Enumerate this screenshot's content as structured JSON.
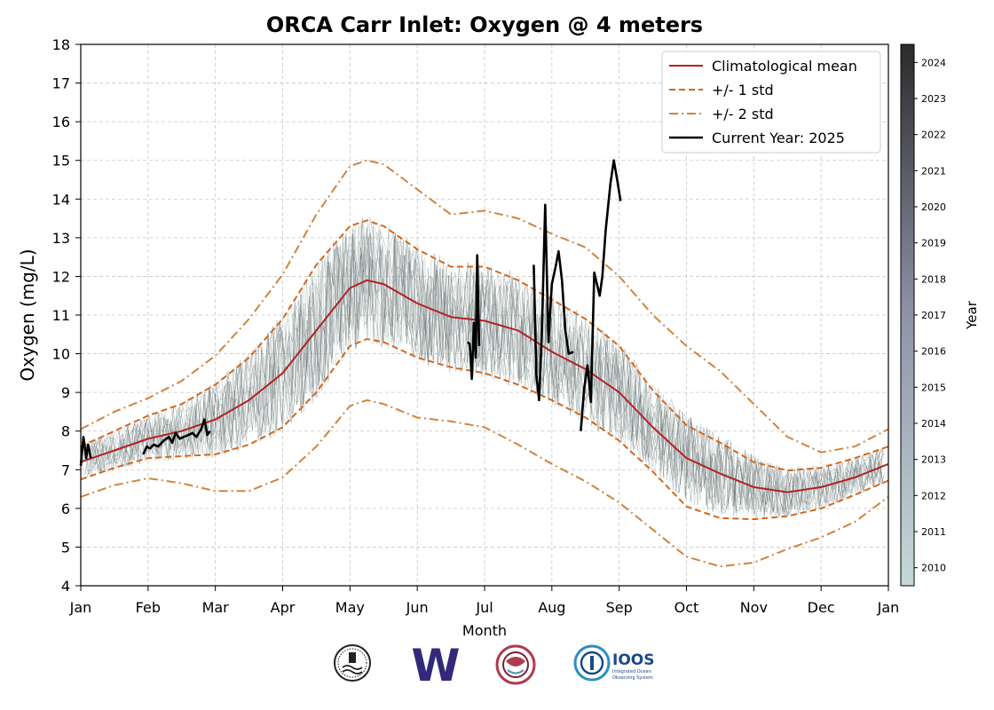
{
  "chart_data": {
    "type": "line",
    "title": "ORCA Carr Inlet: Oxygen @ 4 meters",
    "xlabel": "Month",
    "ylabel": "Oxygen (mg/L)",
    "xlim": [
      0,
      12
    ],
    "ylim": [
      4,
      18
    ],
    "x_ticks": [
      "Jan",
      "Feb",
      "Mar",
      "Apr",
      "May",
      "Jun",
      "Jul",
      "Aug",
      "Sep",
      "Oct",
      "Nov",
      "Dec",
      "Jan"
    ],
    "y_ticks": [
      4,
      5,
      6,
      7,
      8,
      9,
      10,
      11,
      12,
      13,
      14,
      15,
      16,
      17,
      18
    ],
    "grid": true,
    "legend_position": "upper right",
    "colorbar": {
      "label": "Year",
      "min": 2009.5,
      "max": 2024.5,
      "ticks": [
        2010,
        2011,
        2012,
        2013,
        2014,
        2015,
        2016,
        2017,
        2018,
        2019,
        2020,
        2021,
        2022,
        2023,
        2024
      ],
      "color_low": "#c5d9d8",
      "color_high": "#2b2b2b"
    },
    "series": [
      {
        "name": "Climatological mean",
        "color": "#b22222",
        "style": "solid",
        "x": [
          0,
          0.5,
          1,
          1.5,
          2,
          2.5,
          3,
          3.5,
          4,
          4.25,
          4.5,
          5,
          5.5,
          6,
          6.5,
          7,
          7.5,
          8,
          8.5,
          9,
          9.5,
          10,
          10.5,
          11,
          11.5,
          12
        ],
        "y": [
          7.2,
          7.5,
          7.8,
          8.0,
          8.3,
          8.8,
          9.5,
          10.6,
          11.7,
          11.9,
          11.8,
          11.3,
          10.95,
          10.85,
          10.6,
          10.05,
          9.6,
          9.0,
          8.1,
          7.3,
          6.9,
          6.55,
          6.42,
          6.55,
          6.8,
          7.15
        ]
      },
      {
        "name": "+/- 1 std",
        "color": "#d2691e",
        "style": "dashed",
        "x": [
          0,
          0.5,
          1,
          1.5,
          2,
          2.5,
          3,
          3.5,
          4,
          4.25,
          4.5,
          5,
          5.5,
          6,
          6.5,
          7,
          7.5,
          8,
          8.5,
          9,
          9.5,
          10,
          10.5,
          11,
          11.5,
          12
        ],
        "y": [
          7.6,
          8.0,
          8.4,
          8.7,
          9.2,
          9.9,
          10.9,
          12.3,
          13.3,
          13.45,
          13.3,
          12.7,
          12.25,
          12.25,
          11.9,
          11.4,
          10.9,
          10.2,
          9.05,
          8.15,
          7.7,
          7.2,
          6.98,
          7.05,
          7.3,
          7.6
        ]
      },
      {
        "name": "+/- 1 std lower",
        "color": "#d2691e",
        "style": "dashed",
        "x": [
          0,
          0.5,
          1,
          1.5,
          2,
          2.5,
          3,
          3.5,
          4,
          4.25,
          4.5,
          5,
          5.5,
          6,
          6.5,
          7,
          7.5,
          8,
          8.5,
          9,
          9.5,
          10,
          10.5,
          11,
          11.5,
          12
        ],
        "y": [
          6.75,
          7.05,
          7.3,
          7.35,
          7.4,
          7.65,
          8.1,
          9.0,
          10.2,
          10.38,
          10.3,
          9.9,
          9.65,
          9.5,
          9.2,
          8.8,
          8.35,
          7.75,
          6.95,
          6.05,
          5.75,
          5.72,
          5.8,
          6.0,
          6.35,
          6.72
        ]
      },
      {
        "name": "+/- 2 std",
        "color": "#cd853f",
        "style": "dashdot",
        "x": [
          0,
          0.5,
          1,
          1.5,
          2,
          2.5,
          3,
          3.5,
          4,
          4.25,
          4.5,
          5,
          5.5,
          6,
          6.5,
          7,
          7.5,
          8,
          8.5,
          9,
          9.5,
          10,
          10.5,
          11,
          11.5,
          12
        ],
        "y": [
          8.05,
          8.5,
          8.85,
          9.3,
          9.95,
          10.9,
          12.05,
          13.6,
          14.85,
          15.0,
          14.9,
          14.25,
          13.6,
          13.7,
          13.5,
          13.1,
          12.75,
          12.0,
          11.0,
          10.2,
          9.55,
          8.7,
          7.85,
          7.45,
          7.6,
          8.05
        ]
      },
      {
        "name": "+/- 2 std lower",
        "color": "#cd853f",
        "style": "dashdot",
        "x": [
          0,
          0.5,
          1,
          1.5,
          2,
          2.5,
          3,
          3.5,
          4,
          4.25,
          4.5,
          5,
          5.5,
          6,
          6.5,
          7,
          7.5,
          8,
          8.5,
          9,
          9.5,
          10,
          10.5,
          11,
          11.5,
          12
        ],
        "y": [
          6.3,
          6.6,
          6.78,
          6.65,
          6.45,
          6.45,
          6.8,
          7.6,
          8.65,
          8.8,
          8.7,
          8.35,
          8.25,
          8.1,
          7.65,
          7.15,
          6.7,
          6.15,
          5.45,
          4.75,
          4.5,
          4.6,
          4.95,
          5.25,
          5.65,
          6.3
        ]
      },
      {
        "name": "Current Year: 2025",
        "color": "#000000",
        "style": "solid",
        "segments": [
          {
            "x": [
              0.0,
              0.04,
              0.08,
              0.11,
              0.15
            ],
            "y": [
              7.1,
              7.85,
              7.3,
              7.65,
              7.3
            ]
          },
          {
            "x": [
              0.93,
              0.98,
              1.03,
              1.08,
              1.15,
              1.23,
              1.31,
              1.36,
              1.41,
              1.47,
              1.53,
              1.6,
              1.66,
              1.72,
              1.79,
              1.84,
              1.88,
              1.92
            ],
            "y": [
              7.4,
              7.6,
              7.55,
              7.65,
              7.6,
              7.75,
              7.85,
              7.7,
              7.95,
              7.8,
              7.85,
              7.9,
              7.95,
              7.85,
              8.05,
              8.3,
              7.9,
              8.0
            ]
          },
          {
            "x": [
              5.75,
              5.78,
              5.81,
              5.84,
              5.87,
              5.89,
              5.92
            ],
            "y": [
              10.3,
              10.25,
              9.35,
              10.8,
              9.9,
              12.55,
              10.2
            ]
          },
          {
            "x": [
              6.73,
              6.77,
              6.81,
              6.85,
              6.9,
              6.95,
              7.0,
              7.05,
              7.1,
              7.15,
              7.2,
              7.25,
              7.32
            ],
            "y": [
              12.3,
              9.45,
              8.8,
              10.5,
              13.85,
              10.3,
              11.8,
              12.2,
              12.65,
              11.9,
              10.6,
              10.0,
              10.05
            ]
          },
          {
            "x": [
              7.43,
              7.48,
              7.53,
              7.58,
              7.63,
              7.67,
              7.71,
              7.75,
              7.8,
              7.87,
              7.92,
              7.97,
              8.02
            ],
            "y": [
              8.0,
              9.1,
              9.7,
              8.75,
              12.1,
              11.8,
              11.5,
              12.0,
              13.2,
              14.4,
              15.0,
              14.5,
              13.95
            ]
          }
        ]
      }
    ],
    "legend": [
      {
        "label": "Climatological mean",
        "color": "#b22222",
        "style": "solid"
      },
      {
        "label": "+/- 1 std",
        "color": "#d2691e",
        "style": "dashed"
      },
      {
        "label": "+/- 2 std",
        "color": "#cd853f",
        "style": "dashdot"
      },
      {
        "label": "Current Year: 2025",
        "color": "#000000",
        "style": "solid"
      }
    ]
  },
  "logos": [
    {
      "name": "nanoos-logo"
    },
    {
      "name": "uw-logo",
      "text": "W",
      "color": "#33297a"
    },
    {
      "name": "orca-logo",
      "color": "#b03a4e"
    },
    {
      "name": "ioos-logo",
      "text": "IOOS",
      "subtext": "Integrated Ocean Observing System",
      "color": "#1a4a8a"
    }
  ]
}
